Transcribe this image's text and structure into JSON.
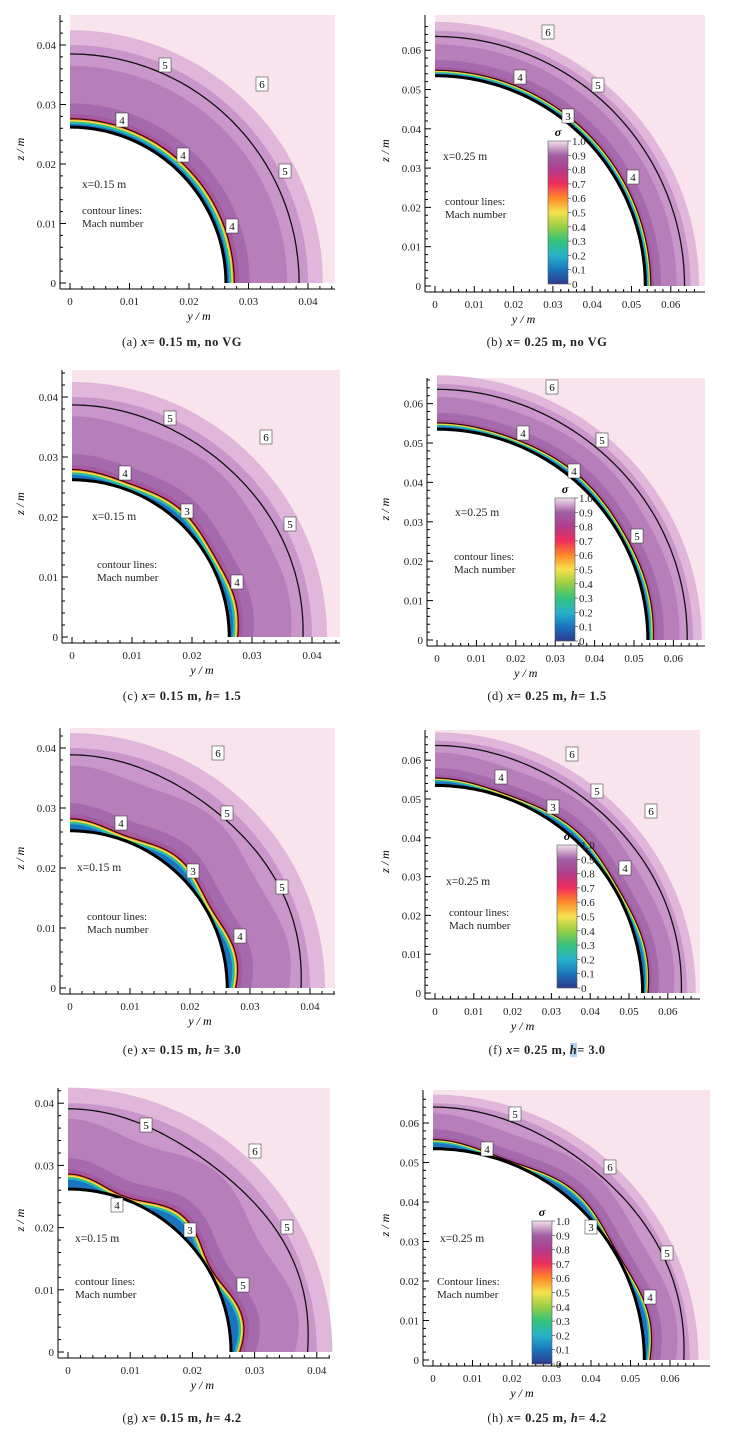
{
  "axis_labels": {
    "x": "y / m",
    "y": "z / m"
  },
  "colorbar": {
    "title": "σ",
    "ticks": [
      "1.0",
      "0.9",
      "0.8",
      "0.7",
      "0.6",
      "0.5",
      "0.4",
      "0.3",
      "0.2",
      "0.1",
      "0"
    ],
    "colors": [
      "#f5e1ef",
      "#a160a4",
      "#b13c8c",
      "#ef2d5b",
      "#ff8a2a",
      "#f6e14d",
      "#97cf45",
      "#35c27a",
      "#27b3c9",
      "#1a74be",
      "#2d3a8c"
    ]
  },
  "ticks_small": [
    "0",
    "0.01",
    "0.02",
    "0.03",
    "0.04"
  ],
  "ticks_large": [
    "0",
    "0.01",
    "0.02",
    "0.03",
    "0.04",
    "0.05",
    "0.06"
  ],
  "panels": [
    {
      "id": "a",
      "caption_prefix": "(a)",
      "caption_x": "x",
      "caption_xval": "= 0.15 m,",
      "caption_tail": "no VG",
      "h_label": "",
      "h_value": "",
      "station": "x=0.15 m",
      "contour_text_1": "contour lines:",
      "contour_text_2": "Mach number",
      "labels": [
        "5",
        "6",
        "4",
        "4",
        "5",
        "4"
      ],
      "has_colorbar": false
    },
    {
      "id": "b",
      "caption_prefix": "(b)",
      "caption_x": "x",
      "caption_xval": "= 0.25 m,",
      "caption_tail": "no VG",
      "h_label": "",
      "h_value": "",
      "station": "x=0.25 m",
      "contour_text_1": "contour lines:",
      "contour_text_2": "Mach number",
      "labels": [
        "6",
        "4",
        "5",
        "3",
        "4"
      ],
      "has_colorbar": true
    },
    {
      "id": "c",
      "caption_prefix": "(c)",
      "caption_x": "x",
      "caption_xval": "= 0.15 m,",
      "caption_tail": "",
      "h_label": "h",
      "h_value": "= 1.5",
      "station": "x=0.15 m",
      "contour_text_1": "contour lines:",
      "contour_text_2": "Mach number",
      "labels": [
        "5",
        "6",
        "4",
        "3",
        "5",
        "4"
      ],
      "has_colorbar": false
    },
    {
      "id": "d",
      "caption_prefix": "(d)",
      "caption_x": "x",
      "caption_xval": "= 0.25 m,",
      "caption_tail": "",
      "h_label": "h",
      "h_value": "= 1.5",
      "station": "x=0.25 m",
      "contour_text_1": "contour lines:",
      "contour_text_2": "Mach number",
      "labels": [
        "6",
        "4",
        "5",
        "4",
        "5"
      ],
      "has_colorbar": true
    },
    {
      "id": "e",
      "caption_prefix": "(e)",
      "caption_x": "x",
      "caption_xval": "= 0.15 m,",
      "caption_tail": "",
      "h_label": "h",
      "h_value": "= 3.0",
      "station": "x=0.15 m",
      "contour_text_1": "contour lines:",
      "contour_text_2": "Mach number",
      "labels": [
        "6",
        "5",
        "4",
        "3",
        "5",
        "4"
      ],
      "has_colorbar": false
    },
    {
      "id": "f",
      "caption_prefix": "(f)",
      "caption_x": "x",
      "caption_xval": "= 0.25 m,",
      "caption_tail": "",
      "h_label": "h",
      "h_value": "= 3.0",
      "station": "x=0.25 m",
      "contour_text_1": "contour lines:",
      "contour_text_2": "Mach number",
      "labels": [
        "6",
        "4",
        "5",
        "3",
        "6",
        "4"
      ],
      "has_colorbar": true
    },
    {
      "id": "g",
      "caption_prefix": "(g)",
      "caption_x": "x",
      "caption_xval": "= 0.15 m,",
      "caption_tail": "",
      "h_label": "h",
      "h_value": "= 4.2",
      "station": "x=0.15 m",
      "contour_text_1": "contour lines:",
      "contour_text_2": "Mach number",
      "labels": [
        "5",
        "6",
        "4",
        "3",
        "5",
        "5"
      ],
      "has_colorbar": false
    },
    {
      "id": "h",
      "caption_prefix": "(h)",
      "caption_x": "x",
      "caption_xval": "= 0.25 m,",
      "caption_tail": "",
      "h_label": "h",
      "h_value": "= 4.2",
      "station": "x=0.25 m",
      "contour_text_1": "Contour lines:",
      "contour_text_2": "Mach number",
      "labels": [
        "5",
        "4",
        "6",
        "3",
        "5",
        "4"
      ],
      "has_colorbar": true
    }
  ]
}
